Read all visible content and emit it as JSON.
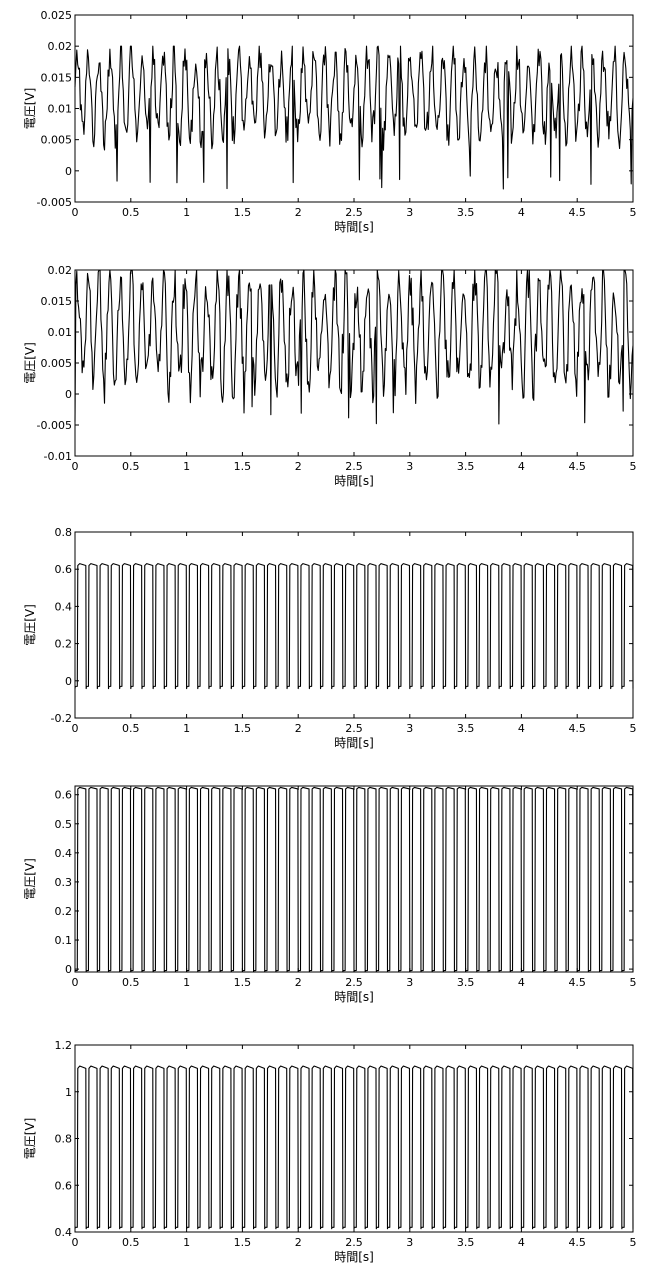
{
  "chart_data": [
    {
      "type": "line",
      "xlabel": "時間[s]",
      "ylabel": "電圧[V]",
      "xlim": [
        0,
        5
      ],
      "ylim": [
        -0.005,
        0.025
      ],
      "xticks": [
        "0",
        "0.5",
        "1",
        "1.5",
        "2",
        "2.5",
        "3",
        "3.5",
        "4",
        "4.5",
        "5"
      ],
      "yticks": [
        "-0.005",
        "0",
        "0.005",
        "0.01",
        "0.015",
        "0.02",
        "0.025"
      ],
      "grid": false,
      "series": [
        {
          "waveform": "noisy oscillation",
          "cycles_in_window": 52,
          "low_level": 0.006,
          "high_level": 0.0185,
          "min": -0.003,
          "max": 0.02
        }
      ]
    },
    {
      "type": "line",
      "xlabel": "時間[s]",
      "ylabel": "電圧[V]",
      "xlim": [
        0,
        5
      ],
      "ylim": [
        -0.01,
        0.02
      ],
      "xticks": [
        "0",
        "0.5",
        "1",
        "1.5",
        "2",
        "2.5",
        "3",
        "3.5",
        "4",
        "4.5",
        "5"
      ],
      "yticks": [
        "-0.01",
        "-0.005",
        "0",
        "0.005",
        "0.01",
        "0.015",
        "0.02"
      ],
      "grid": false,
      "series": [
        {
          "waveform": "noisy oscillation",
          "cycles_in_window": 52,
          "low_level": 0.002,
          "high_level": 0.0185,
          "min": -0.005,
          "max": 0.02
        }
      ]
    },
    {
      "type": "line",
      "xlabel": "時間[s]",
      "ylabel": "電圧[V]",
      "xlim": [
        0,
        5
      ],
      "ylim": [
        -0.2,
        0.8
      ],
      "xticks": [
        "0",
        "0.5",
        "1",
        "1.5",
        "2",
        "2.5",
        "3",
        "3.5",
        "4",
        "4.5",
        "5"
      ],
      "yticks": [
        "-0.2",
        "0",
        "0.2",
        "0.4",
        "0.6",
        "0.8"
      ],
      "grid": false,
      "series": [
        {
          "waveform": "square",
          "cycles_in_window": 50,
          "low_level": -0.03,
          "high_level": 0.62,
          "min": -0.05,
          "max": 0.63
        }
      ]
    },
    {
      "type": "line",
      "xlabel": "時間[s]",
      "ylabel": "電圧[V]",
      "xlim": [
        0,
        5
      ],
      "ylim": [
        -0.01,
        0.63
      ],
      "xticks": [
        "0",
        "0.5",
        "1",
        "1.5",
        "2",
        "2.5",
        "3",
        "3.5",
        "4",
        "4.5",
        "5"
      ],
      "yticks": [
        "0",
        "0.1",
        "0.2",
        "0.3",
        "0.4",
        "0.5",
        "0.6"
      ],
      "grid": false,
      "series": [
        {
          "waveform": "square",
          "cycles_in_window": 50,
          "low_level": -0.005,
          "high_level": 0.62,
          "min": -0.01,
          "max": 0.625
        }
      ]
    },
    {
      "type": "line",
      "xlabel": "時間[s]",
      "ylabel": "電圧[V]",
      "xlim": [
        0,
        5
      ],
      "ylim": [
        0.4,
        1.2
      ],
      "xticks": [
        "0",
        "0.5",
        "1",
        "1.5",
        "2",
        "2.5",
        "3",
        "3.5",
        "4",
        "4.5",
        "5"
      ],
      "yticks": [
        "0.4",
        "0.6",
        "0.8",
        "1",
        "1.2"
      ],
      "grid": false,
      "series": [
        {
          "waveform": "square",
          "cycles_in_window": 50,
          "low_level": 0.42,
          "high_level": 1.1,
          "min": 0.41,
          "max": 1.11
        }
      ]
    }
  ]
}
